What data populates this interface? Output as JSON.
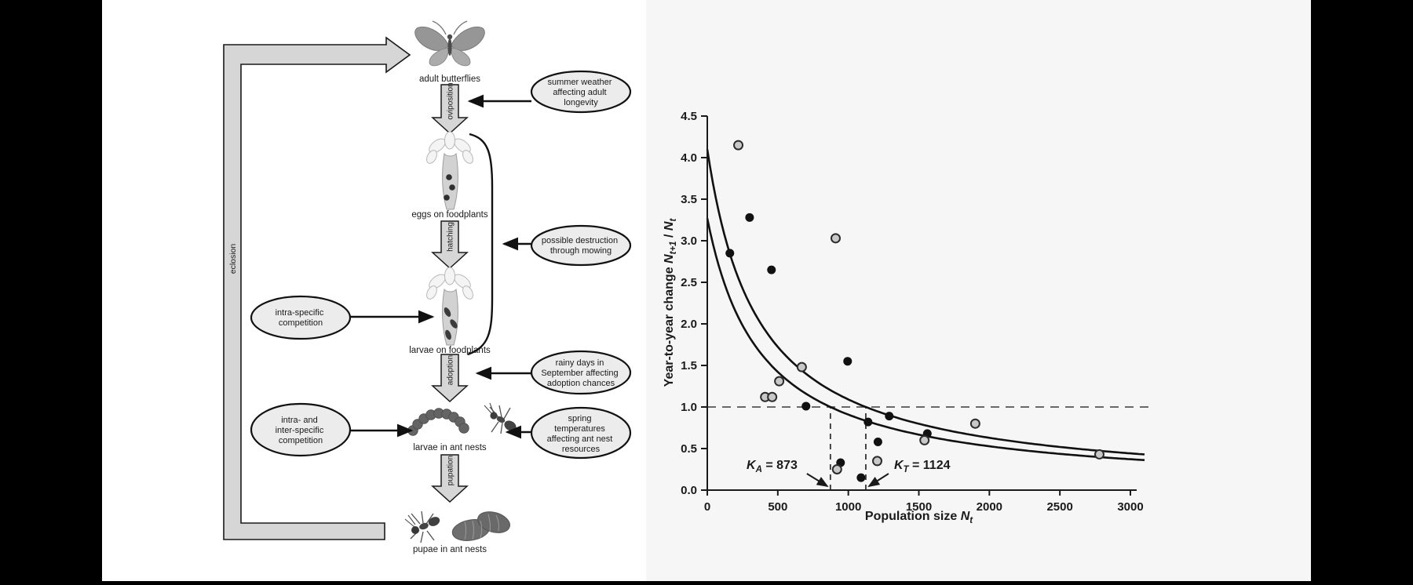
{
  "window": {
    "background": "#000000",
    "content_background": "#ffffff",
    "chart_panel_background": "#f6f6f6"
  },
  "diagram": {
    "loop_label": "eclosion",
    "stages": [
      {
        "label": "adult butterflies"
      },
      {
        "label": "eggs on foodplants"
      },
      {
        "label": "larvae on foodplants"
      },
      {
        "label": "larvae in ant nests"
      },
      {
        "label": "pupae in ant nests"
      }
    ],
    "transitions": [
      "oviposition",
      "hatching",
      "adoption",
      "pupation"
    ],
    "left_factors": [
      {
        "lines": [
          "intra-specific",
          "competition"
        ]
      },
      {
        "lines": [
          "intra- and",
          "inter-specific",
          "competition"
        ]
      }
    ],
    "right_factors": [
      {
        "lines": [
          "summer weather",
          "affecting adult",
          "longevity"
        ]
      },
      {
        "lines": [
          "possible destruction",
          "through mowing"
        ]
      },
      {
        "lines": [
          "rainy days in",
          "September affecting",
          "adoption chances"
        ]
      },
      {
        "lines": [
          "spring",
          "temperatures",
          "affecting ant nest",
          "resources"
        ]
      }
    ]
  },
  "chart_data": {
    "type": "scatter",
    "xlabel_parts": [
      {
        "t": "Population size "
      },
      {
        "t": "N",
        "i": true
      },
      {
        "t": "t",
        "sub": true,
        "i": true
      }
    ],
    "ylabel_parts": [
      {
        "t": "Year-to-year change "
      },
      {
        "t": "N",
        "i": true
      },
      {
        "t": "t+1",
        "sub": true,
        "i": true
      },
      {
        "t": " / "
      },
      {
        "t": "N",
        "i": true
      },
      {
        "t": "t",
        "sub": true,
        "i": true
      }
    ],
    "xlim": [
      0,
      3000
    ],
    "ylim": [
      0,
      4.5
    ],
    "xticks": [
      0,
      500,
      1000,
      1500,
      2000,
      2500,
      3000
    ],
    "yticks": [
      0,
      0.5,
      1,
      1.5,
      2,
      2.5,
      3,
      3.5,
      4,
      4.5
    ],
    "grid": false,
    "reference_line_y": 1.0,
    "annotations": [
      {
        "x": 873,
        "side": "left",
        "parts": [
          {
            "t": "K",
            "i": true
          },
          {
            "t": "A",
            "sub": true,
            "i": true
          },
          {
            "t": " = 873"
          }
        ]
      },
      {
        "x": 1124,
        "side": "right",
        "parts": [
          {
            "t": "K",
            "i": true
          },
          {
            "t": "T",
            "sub": true,
            "i": true
          },
          {
            "t": " = 1124"
          }
        ]
      }
    ],
    "series": [
      {
        "name": "filled-circles",
        "marker": "filled-circle",
        "color": "#111111",
        "points": [
          [
            160,
            2.85
          ],
          [
            300,
            3.28
          ],
          [
            455,
            2.65
          ],
          [
            700,
            1.01
          ],
          [
            945,
            0.33
          ],
          [
            995,
            1.55
          ],
          [
            1090,
            0.15
          ],
          [
            1140,
            0.82
          ],
          [
            1210,
            0.58
          ],
          [
            1290,
            0.89
          ],
          [
            1560,
            0.68
          ]
        ]
      },
      {
        "name": "open-circles",
        "marker": "open-circle",
        "fill": "#c8c8c8",
        "stroke": "#2b2b2b",
        "points": [
          [
            220,
            4.15
          ],
          [
            410,
            1.12
          ],
          [
            460,
            1.12
          ],
          [
            510,
            1.31
          ],
          [
            670,
            1.48
          ],
          [
            910,
            3.03
          ],
          [
            920,
            0.25
          ],
          [
            1205,
            0.35
          ],
          [
            1540,
            0.6
          ],
          [
            1900,
            0.8
          ],
          [
            2780,
            0.43
          ]
        ]
      }
    ],
    "curves": [
      {
        "name": "upper-fit",
        "y0": 4.1,
        "k": 1124
      },
      {
        "name": "lower-fit",
        "y0": 3.27,
        "k": 873
      }
    ]
  }
}
